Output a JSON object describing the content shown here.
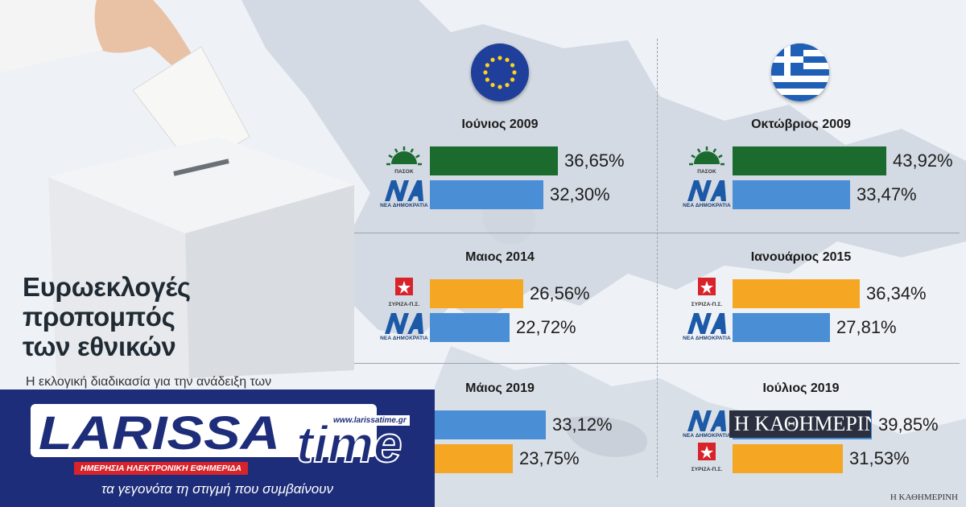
{
  "headline": [
    "Ευρωεκλογές",
    "προπομπός",
    "των εθνικών"
  ],
  "subtext": "Η εκλογική διαδικασία για την ανάδειξη των",
  "parties": {
    "pasok": {
      "caption": "ΠΑΣΟΚ",
      "color": "#1b6b2e"
    },
    "nd": {
      "caption": "ΝΕΑ ΔΗΜΟΚΡΑΤΙΑ",
      "color": "#4a8fd6"
    },
    "syriza": {
      "caption": "ΣΥΡΙΖΑ-Π.Σ.",
      "color": "#f5a623"
    }
  },
  "chart_data": [
    {
      "type": "bar",
      "election": "European",
      "title": "Ιούνιος 2009",
      "series": [
        {
          "party": "pasok",
          "value": 36.65,
          "label": "36,65%"
        },
        {
          "party": "nd",
          "value": 32.3,
          "label": "32,30%"
        }
      ]
    },
    {
      "type": "bar",
      "election": "National",
      "title": "Οκτώβριος 2009",
      "series": [
        {
          "party": "pasok",
          "value": 43.92,
          "label": "43,92%"
        },
        {
          "party": "nd",
          "value": 33.47,
          "label": "33,47%"
        }
      ]
    },
    {
      "type": "bar",
      "election": "European",
      "title": "Μαιος 2014",
      "series": [
        {
          "party": "syriza",
          "value": 26.56,
          "label": "26,56%"
        },
        {
          "party": "nd",
          "value": 22.72,
          "label": "22,72%"
        }
      ]
    },
    {
      "type": "bar",
      "election": "National",
      "title": "Ιανουάριος 2015",
      "series": [
        {
          "party": "syriza",
          "value": 36.34,
          "label": "36,34%"
        },
        {
          "party": "nd",
          "value": 27.81,
          "label": "27,81%"
        }
      ]
    },
    {
      "type": "bar",
      "election": "European",
      "title": "Μάιος 2019",
      "series": [
        {
          "party": "nd",
          "value": 33.12,
          "label": "33,12%"
        },
        {
          "party": "syriza",
          "value": 23.75,
          "label": "23,75%"
        }
      ]
    },
    {
      "type": "bar",
      "election": "National",
      "title": "Ιούλιος 2019",
      "series": [
        {
          "party": "nd",
          "value": 39.85,
          "label": "39,85%"
        },
        {
          "party": "syriza",
          "value": 31.53,
          "label": "31,53%"
        }
      ]
    }
  ],
  "banner": {
    "logo_text": "LARISSA",
    "logo_time": "time",
    "url": "www.larissatime.gr",
    "tagline": "ΗΜΕΡΗΣΙΑ ΗΛΕΚΤΡΟΝΙΚΗ ΕΦΗΜΕΡΙΔΑ",
    "slogan": "τα γεγονότα τη στιγμή που συμβαίνουν"
  },
  "overlay_brand": "Η ΚΑΘΗΜΕΡΙΝΗ",
  "source": "Η ΚΑΘΗΜΕΡΙΝΗ"
}
